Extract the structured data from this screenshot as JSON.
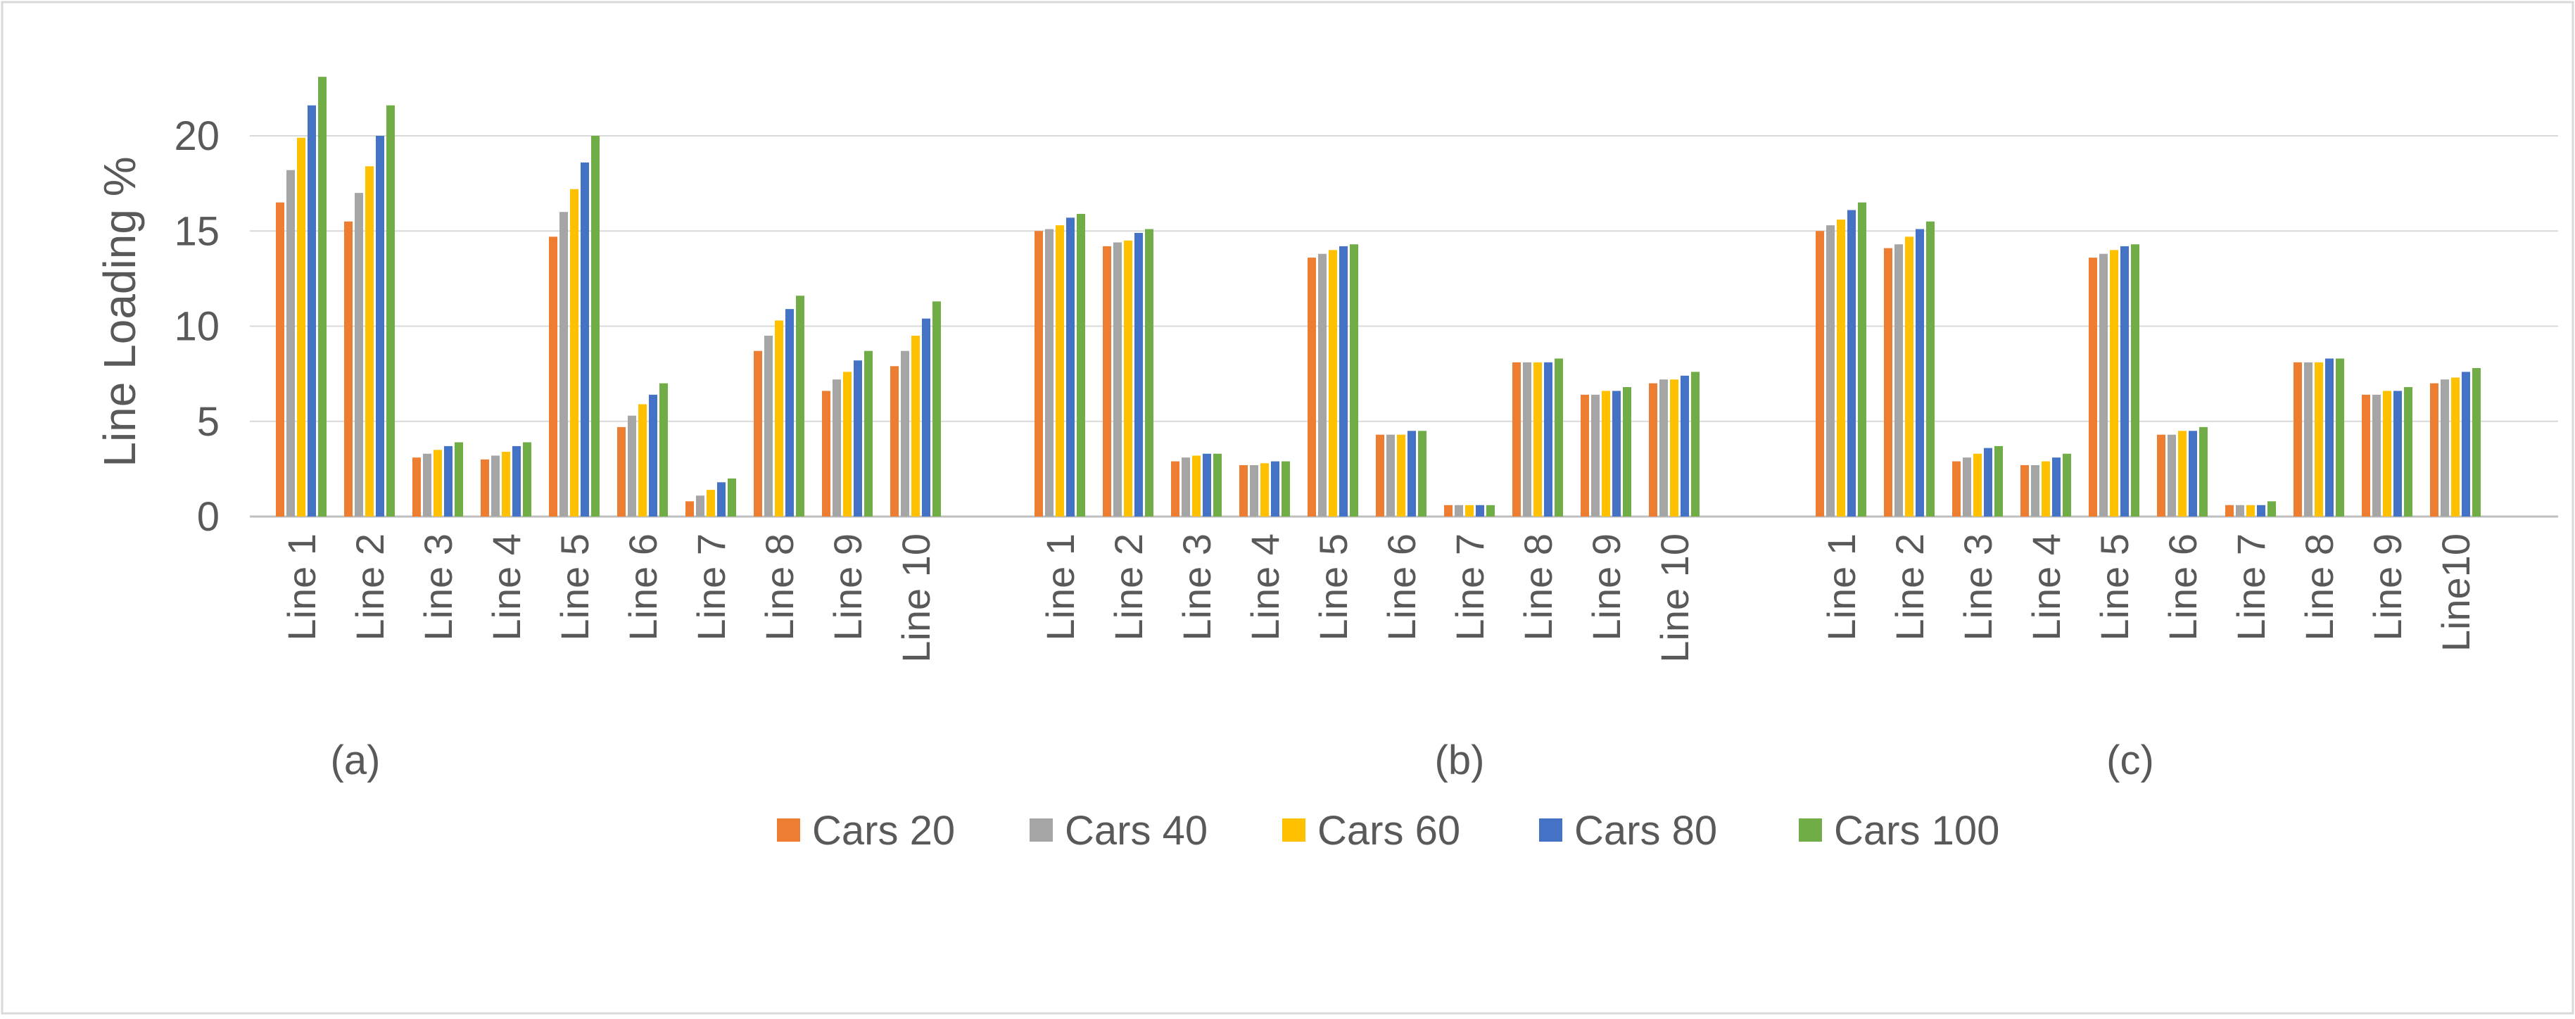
{
  "chart_data": {
    "type": "bar",
    "title": "",
    "xlabel": "",
    "ylabel": "Line Loading %",
    "ylim": [
      0,
      23.5
    ],
    "yticks": [
      0,
      5,
      10,
      15,
      20
    ],
    "ytick_labels": [
      "0",
      "5",
      "10",
      "15",
      "20"
    ],
    "grid": true,
    "legend_position": "bottom-center",
    "categories": [
      "Line 1",
      "Line 2",
      "Line 3",
      "Line 4",
      "Line 5",
      "Line 6",
      "Line 7",
      "Line 8",
      "Line 9",
      "Line 10"
    ],
    "category_labels": {
      "a": [
        "Line 1",
        "Line 2",
        "Line 3",
        "Line 4",
        "Line 5",
        "Line 6",
        "Line 7",
        "Line 8",
        "Line 9",
        "Line 10"
      ],
      "b": [
        "Line 1",
        "Line 2",
        "Line 3",
        "Line 4",
        "Line 5",
        "Line 6",
        "Line 7",
        "Line 8",
        "Line 9",
        "Line 10"
      ],
      "c": [
        "Line 1",
        "Line 2",
        "Line 3",
        "Line 4",
        "Line 5",
        "Line 6",
        "Line 7",
        "Line 8",
        "Line 9",
        "Line10"
      ]
    },
    "series_names": [
      "Cars 20",
      "Cars 40",
      "Cars 60",
      "Cars 80",
      "Cars 100"
    ],
    "series_colors": [
      "#ED7D31",
      "#A5A5A5",
      "#FFC000",
      "#4472C4",
      "#70AD47"
    ],
    "groups": [
      {
        "label": "(a)",
        "series": [
          {
            "name": "Cars 20",
            "values": [
              16.5,
              15.5,
              3.1,
              3.0,
              14.7,
              4.7,
              0.8,
              8.7,
              6.6,
              7.9
            ]
          },
          {
            "name": "Cars 40",
            "values": [
              18.2,
              17.0,
              3.3,
              3.2,
              16.0,
              5.3,
              1.1,
              9.5,
              7.2,
              8.7
            ]
          },
          {
            "name": "Cars 60",
            "values": [
              19.9,
              18.4,
              3.5,
              3.4,
              17.2,
              5.9,
              1.4,
              10.3,
              7.6,
              9.5
            ]
          },
          {
            "name": "Cars 80",
            "values": [
              21.6,
              20.0,
              3.7,
              3.7,
              18.6,
              6.4,
              1.8,
              10.9,
              8.2,
              10.4
            ]
          },
          {
            "name": "Cars 100",
            "values": [
              23.1,
              21.6,
              3.9,
              3.9,
              20.0,
              7.0,
              2.0,
              11.6,
              8.7,
              11.3
            ]
          }
        ]
      },
      {
        "label": "(b)",
        "series": [
          {
            "name": "Cars 20",
            "values": [
              15.0,
              14.2,
              2.9,
              2.7,
              13.6,
              4.3,
              0.6,
              8.1,
              6.4,
              7.0
            ]
          },
          {
            "name": "Cars 40",
            "values": [
              15.1,
              14.4,
              3.1,
              2.7,
              13.8,
              4.3,
              0.6,
              8.1,
              6.4,
              7.2
            ]
          },
          {
            "name": "Cars 60",
            "values": [
              15.3,
              14.5,
              3.2,
              2.8,
              14.0,
              4.3,
              0.6,
              8.1,
              6.6,
              7.2
            ]
          },
          {
            "name": "Cars 80",
            "values": [
              15.7,
              14.9,
              3.3,
              2.9,
              14.2,
              4.5,
              0.6,
              8.1,
              6.6,
              7.4
            ]
          },
          {
            "name": "Cars 100",
            "values": [
              15.9,
              15.1,
              3.3,
              2.9,
              14.3,
              4.5,
              0.6,
              8.3,
              6.8,
              7.6
            ]
          }
        ]
      },
      {
        "label": "(c)",
        "series": [
          {
            "name": "Cars 20",
            "values": [
              15.0,
              14.1,
              2.9,
              2.7,
              13.6,
              4.3,
              0.6,
              8.1,
              6.4,
              7.0
            ]
          },
          {
            "name": "Cars 40",
            "values": [
              15.3,
              14.3,
              3.1,
              2.7,
              13.8,
              4.3,
              0.6,
              8.1,
              6.4,
              7.2
            ]
          },
          {
            "name": "Cars 60",
            "values": [
              15.6,
              14.7,
              3.3,
              2.9,
              14.0,
              4.5,
              0.6,
              8.1,
              6.6,
              7.3
            ]
          },
          {
            "name": "Cars 80",
            "values": [
              16.1,
              15.1,
              3.6,
              3.1,
              14.2,
              4.5,
              0.6,
              8.3,
              6.6,
              7.6
            ]
          },
          {
            "name": "Cars 100",
            "values": [
              16.5,
              15.5,
              3.7,
              3.3,
              14.3,
              4.7,
              0.8,
              8.3,
              6.8,
              7.8
            ]
          }
        ]
      }
    ]
  }
}
